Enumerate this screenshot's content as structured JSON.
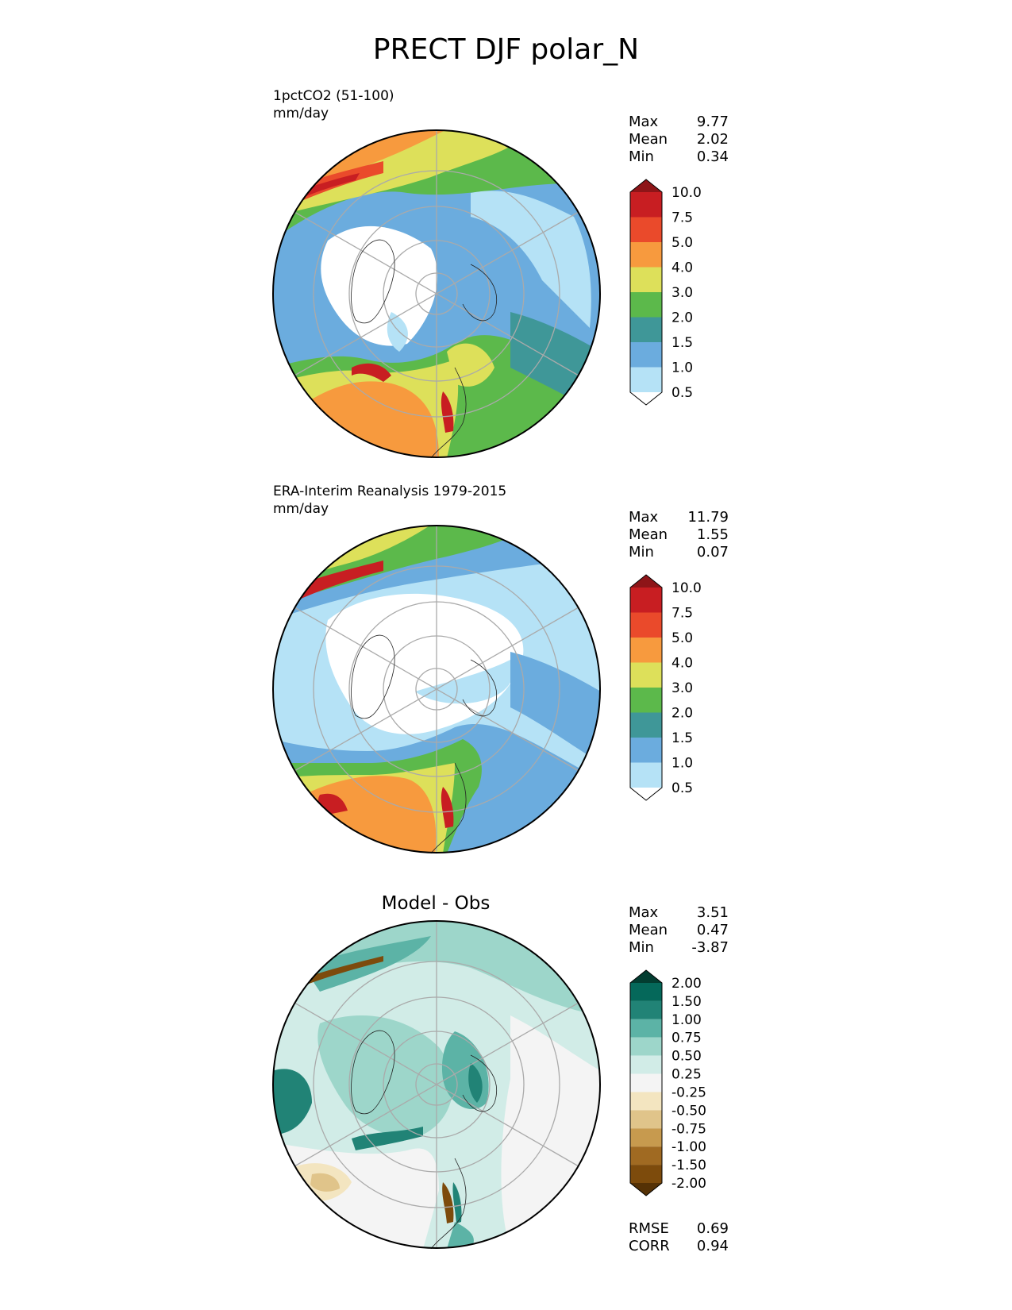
{
  "title": "PRECT DJF polar_N",
  "colors": {
    "precip": [
      "#ffffff",
      "#b5e2f6",
      "#6bacde",
      "#3f9798",
      "#5cb94b",
      "#dde05a",
      "#f79a3e",
      "#ea4a2b",
      "#c81e22",
      "#8e1518"
    ],
    "diff": [
      "#553105",
      "#7d4b0c",
      "#a06a22",
      "#c79a4e",
      "#e0c48a",
      "#f3e5c0",
      "#f4f4f4",
      "#d1ece7",
      "#9dd6ca",
      "#5cb3a6",
      "#218376",
      "#05685a",
      "#033d31"
    ]
  },
  "chart_data": [
    {
      "type": "polar-contour",
      "label": "1pctCO2 (51-100)",
      "units": "mm/day",
      "stats": [
        {
          "k": "Max",
          "v": "9.77"
        },
        {
          "k": "Mean",
          "v": "2.02"
        },
        {
          "k": "Min",
          "v": "0.34"
        }
      ],
      "levels": [
        "10.0",
        "7.5",
        "5.0",
        "4.0",
        "3.0",
        "2.0",
        "1.5",
        "1.0",
        "0.5"
      ]
    },
    {
      "type": "polar-contour",
      "label": "ERA-Interim Reanalysis 1979-2015",
      "units": "mm/day",
      "stats": [
        {
          "k": "Max",
          "v": "11.79"
        },
        {
          "k": "Mean",
          "v": "1.55"
        },
        {
          "k": "Min",
          "v": "0.07"
        }
      ],
      "levels": [
        "10.0",
        "7.5",
        "5.0",
        "4.0",
        "3.0",
        "2.0",
        "1.5",
        "1.0",
        "0.5"
      ]
    },
    {
      "type": "polar-contour",
      "title": "Model - Obs",
      "stats": [
        {
          "k": "Max",
          "v": "3.51"
        },
        {
          "k": "Mean",
          "v": "0.47"
        },
        {
          "k": "Min",
          "v": "-3.87"
        }
      ],
      "levels": [
        "2.00",
        "1.50",
        "1.00",
        "0.75",
        "0.50",
        "0.25",
        "-0.25",
        "-0.50",
        "-0.75",
        "-1.00",
        "-1.50",
        "-2.00"
      ],
      "metrics": [
        {
          "k": "RMSE",
          "v": "0.69"
        },
        {
          "k": "CORR",
          "v": "0.94"
        }
      ]
    }
  ]
}
